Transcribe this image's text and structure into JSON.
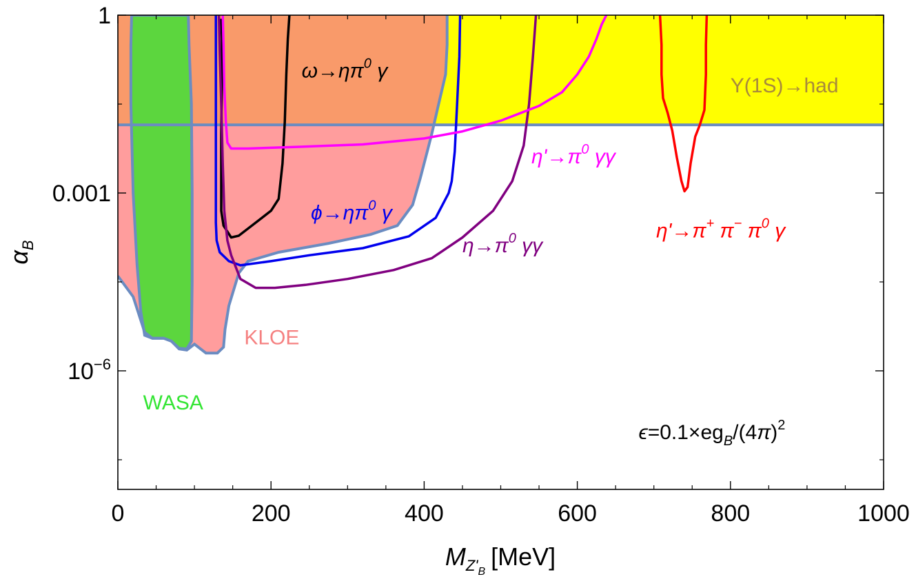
{
  "chart_data": {
    "type": "line",
    "title": "",
    "xlabel": {
      "main": "M",
      "sub": "Z'",
      "subsub": "B",
      "unit": "[MeV]"
    },
    "ylabel": {
      "main": "α",
      "sub": "B"
    },
    "xlim": [
      0,
      1000
    ],
    "ylim_log10": [
      -8,
      0
    ],
    "y_log_scale": true,
    "x_ticks": [
      {
        "value": 0,
        "label": "0"
      },
      {
        "value": 200,
        "label": "200"
      },
      {
        "value": 400,
        "label": "400"
      },
      {
        "value": 600,
        "label": "600"
      },
      {
        "value": 800,
        "label": "800"
      },
      {
        "value": 1000,
        "label": "1000"
      }
    ],
    "y_ticks": [
      {
        "log10": 0,
        "label": "1",
        "type": "plain"
      },
      {
        "log10": -3,
        "label": "0.001",
        "type": "plain"
      },
      {
        "log10": -6,
        "label": "10",
        "sup": "−6",
        "type": "power"
      }
    ],
    "y_minor_ticks_log10": [
      -1.5,
      -4.5,
      -7.5
    ],
    "x_minor_step": 50,
    "grid": false,
    "colors": {
      "yellow_fill": "#ffff00",
      "kloe_fill_upper": "#f99a6a",
      "kloe_fill_lower": "#ff9d9d",
      "wasa_fill": "#5cd63e",
      "region_edge": "#6b8cc1",
      "omega_line": "#000000",
      "phi_line": "#0000ee",
      "eta_line": "#800080",
      "etaprime_gg_line": "#ff00ff",
      "etaprime_pipi_line": "#ff0000",
      "upsilon_text": "#a88a3c",
      "kloe_text": "#f58080",
      "wasa_text": "#33e533"
    },
    "regions": [
      {
        "name": "Υ(1S)→had",
        "label": "Υ(1S)→had",
        "color_key": "yellow_fill",
        "y_lower_log10": -1.85,
        "x_range": [
          0,
          1000
        ]
      },
      {
        "name": "KLOE",
        "label": "KLOE",
        "color_key": "kloe_fill_lower",
        "points": [
          [
            0,
            -4.4
          ],
          [
            20,
            -4.75
          ],
          [
            35,
            -5.35
          ],
          [
            45,
            -5.45
          ],
          [
            60,
            -5.45
          ],
          [
            70,
            -5.5
          ],
          [
            80,
            -5.63
          ],
          [
            90,
            -5.65
          ],
          [
            100,
            -5.55
          ],
          [
            115,
            -5.7
          ],
          [
            130,
            -5.7
          ],
          [
            138,
            -5.6
          ],
          [
            140,
            -5.3
          ],
          [
            145,
            -4.9
          ],
          [
            158,
            -4.35
          ],
          [
            170,
            -4.15
          ],
          [
            210,
            -4.0
          ],
          [
            275,
            -3.85
          ],
          [
            330,
            -3.7
          ],
          [
            365,
            -3.55
          ],
          [
            385,
            -3.2
          ],
          [
            395,
            -2.75
          ],
          [
            405,
            -2.25
          ],
          [
            410,
            -2.0
          ],
          [
            418,
            -1.55
          ],
          [
            428,
            -1.0
          ],
          [
            430,
            -0.5
          ],
          [
            430,
            0
          ],
          [
            0,
            0
          ]
        ]
      },
      {
        "name": "WASA",
        "label": "WASA",
        "color_key": "wasa_fill",
        "points": [
          [
            18,
            0
          ],
          [
            17,
            -0.5
          ],
          [
            17,
            -1.5
          ],
          [
            20,
            -3.0
          ],
          [
            25,
            -4.2
          ],
          [
            30,
            -5.0
          ],
          [
            35,
            -5.4
          ],
          [
            45,
            -5.45
          ],
          [
            60,
            -5.45
          ],
          [
            70,
            -5.5
          ],
          [
            80,
            -5.62
          ],
          [
            90,
            -5.63
          ],
          [
            96,
            -5.5
          ],
          [
            97,
            -4.5
          ],
          [
            97,
            -3.0
          ],
          [
            96,
            -1.5
          ],
          [
            93,
            -0.5
          ],
          [
            92,
            0
          ]
        ]
      }
    ],
    "series": [
      {
        "name": "ω→ηπ⁰γ",
        "color_key": "omega_line",
        "points": [
          [
            135,
            -0.06
          ],
          [
            136,
            -0.4
          ],
          [
            136,
            -1.0
          ],
          [
            135,
            -2.0
          ],
          [
            135,
            -3.0
          ],
          [
            135,
            -3.3
          ],
          [
            138,
            -3.55
          ],
          [
            148,
            -3.75
          ],
          [
            158,
            -3.72
          ],
          [
            180,
            -3.5
          ],
          [
            200,
            -3.3
          ],
          [
            210,
            -3.1
          ],
          [
            215,
            -2.5
          ],
          [
            218,
            -1.8
          ],
          [
            220,
            -1.0
          ],
          [
            222,
            -0.4
          ],
          [
            224,
            0
          ]
        ]
      },
      {
        "name": "ϕ→ηπ⁰γ",
        "color_key": "phi_line",
        "points": [
          [
            128,
            0
          ],
          [
            128,
            -0.8
          ],
          [
            128,
            -2.0
          ],
          [
            128,
            -3.5
          ],
          [
            129,
            -3.8
          ],
          [
            133,
            -4.0
          ],
          [
            145,
            -4.15
          ],
          [
            160,
            -4.22
          ],
          [
            200,
            -4.15
          ],
          [
            250,
            -4.05
          ],
          [
            320,
            -3.93
          ],
          [
            380,
            -3.73
          ],
          [
            415,
            -3.42
          ],
          [
            432,
            -3.0
          ],
          [
            436,
            -2.8
          ],
          [
            440,
            -2.3
          ],
          [
            443,
            -1.5
          ],
          [
            446,
            -0.7
          ],
          [
            447,
            0
          ]
        ]
      },
      {
        "name": "η→π⁰γγ",
        "color_key": "eta_line",
        "points": [
          [
            132,
            0
          ],
          [
            133,
            -0.6
          ],
          [
            135,
            -1.5
          ],
          [
            137,
            -2.5
          ],
          [
            139,
            -3.3
          ],
          [
            143,
            -3.8
          ],
          [
            148,
            -4.05
          ],
          [
            160,
            -4.45
          ],
          [
            180,
            -4.6
          ],
          [
            205,
            -4.6
          ],
          [
            245,
            -4.55
          ],
          [
            300,
            -4.45
          ],
          [
            360,
            -4.3
          ],
          [
            410,
            -4.1
          ],
          [
            450,
            -3.75
          ],
          [
            490,
            -3.3
          ],
          [
            515,
            -2.8
          ],
          [
            530,
            -2.2
          ],
          [
            537,
            -1.5
          ],
          [
            542,
            -0.7
          ],
          [
            546,
            0
          ]
        ]
      },
      {
        "name": "η'→π⁰γγ",
        "color_key": "etaprime_gg_line",
        "points": [
          [
            137,
            0
          ],
          [
            138,
            -0.5
          ],
          [
            139,
            -1.2
          ],
          [
            141,
            -1.8
          ],
          [
            143,
            -2.15
          ],
          [
            148,
            -2.25
          ],
          [
            170,
            -2.25
          ],
          [
            240,
            -2.22
          ],
          [
            320,
            -2.18
          ],
          [
            400,
            -2.08
          ],
          [
            450,
            -1.96
          ],
          [
            500,
            -1.78
          ],
          [
            550,
            -1.53
          ],
          [
            580,
            -1.3
          ],
          [
            600,
            -1.0
          ],
          [
            615,
            -0.7
          ],
          [
            625,
            -0.4
          ],
          [
            632,
            -0.15
          ],
          [
            638,
            0
          ]
        ]
      },
      {
        "name": "η'→π⁺π⁻π⁰γ",
        "color_key": "etaprime_pipi_line",
        "points": [
          [
            708,
            0
          ],
          [
            710,
            -0.5
          ],
          [
            710,
            -1.0
          ],
          [
            712,
            -1.4
          ],
          [
            718,
            -1.65
          ],
          [
            724,
            -1.95
          ],
          [
            730,
            -2.4
          ],
          [
            736,
            -2.8
          ],
          [
            740,
            -2.97
          ],
          [
            744,
            -2.9
          ],
          [
            748,
            -2.5
          ],
          [
            754,
            -2.05
          ],
          [
            760,
            -1.85
          ],
          [
            766,
            -1.6
          ],
          [
            768,
            -1.0
          ],
          [
            768,
            -0.5
          ],
          [
            769,
            0
          ]
        ]
      }
    ],
    "annotations": [
      {
        "name": "omega-label",
        "text_parts": [
          {
            "t": "ω→ηπ"
          },
          {
            "t": "0",
            "sup": true
          },
          {
            "t": " γ"
          }
        ],
        "color_key": "omega_line",
        "at": [
          240,
          -1.05
        ],
        "italic": true
      },
      {
        "name": "phi-label",
        "text_parts": [
          {
            "t": "ϕ→ηπ"
          },
          {
            "t": "0",
            "sup": true
          },
          {
            "t": " γ"
          }
        ],
        "color_key": "phi_line",
        "at": [
          252,
          -3.45
        ],
        "italic": true
      },
      {
        "name": "eta-label",
        "text_parts": [
          {
            "t": "η→π"
          },
          {
            "t": "0",
            "sup": true
          },
          {
            "t": " γγ"
          }
        ],
        "color_key": "eta_line",
        "at": [
          450,
          -4.0
        ],
        "italic": true
      },
      {
        "name": "etaprime-gg-label",
        "text_parts": [
          {
            "t": "η'→π"
          },
          {
            "t": "0",
            "sup": true
          },
          {
            "t": " γγ"
          }
        ],
        "color_key": "etaprime_gg_line",
        "at": [
          540,
          -2.5
        ],
        "italic": true
      },
      {
        "name": "etaprime-pipi-label",
        "text_parts": [
          {
            "t": "η'→π"
          },
          {
            "t": "+",
            "sup": true
          },
          {
            "t": " π"
          },
          {
            "t": "−",
            "sup": true
          },
          {
            "t": " π"
          },
          {
            "t": "0",
            "sup": true
          },
          {
            "t": " γ"
          }
        ],
        "color_key": "etaprime_pipi_line",
        "at": [
          703,
          -3.75
        ],
        "italic": true
      },
      {
        "name": "upsilon-label",
        "text_parts": [
          {
            "t": "Υ(1S)→had"
          }
        ],
        "color_key": "upsilon_text",
        "at": [
          800,
          -1.3
        ],
        "italic": false
      },
      {
        "name": "kloe-label",
        "text_parts": [
          {
            "t": "KLOE"
          }
        ],
        "color_key": "kloe_text",
        "at": [
          165,
          -5.55
        ],
        "italic": false
      },
      {
        "name": "wasa-label",
        "text_parts": [
          {
            "t": "WASA"
          }
        ],
        "color_key": "wasa_text",
        "at": [
          33,
          -6.65
        ],
        "italic": false
      },
      {
        "name": "epsilon-label",
        "text_parts": [
          {
            "t": "ϵ",
            "i": true
          },
          {
            "t": "=0.1×eg"
          },
          {
            "t": "B",
            "i": true,
            "sub": true
          },
          {
            "t": "/(4"
          },
          {
            "t": "π",
            "i": true
          },
          {
            "t": ")"
          },
          {
            "t": "2",
            "sup": true
          }
        ],
        "color_key": "omega_line",
        "at": [
          680,
          -7.15
        ],
        "italic": false
      }
    ]
  }
}
